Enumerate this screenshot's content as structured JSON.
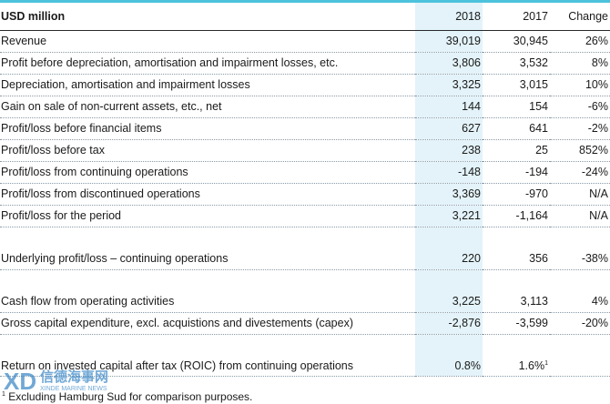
{
  "table": {
    "header": {
      "label": "USD million",
      "col_2018": "2018",
      "col_2017": "2017",
      "col_change": "Change"
    },
    "rows": [
      {
        "label": "Revenue",
        "v2018": "39,019",
        "v2017": "30,945",
        "change": "26%"
      },
      {
        "label": "Profit before depreciation, amortisation and impairment losses, etc.",
        "v2018": "3,806",
        "v2017": "3,532",
        "change": "8%"
      },
      {
        "label": "Depreciation, amortisation and impairment losses",
        "v2018": "3,325",
        "v2017": "3,015",
        "change": "10%"
      },
      {
        "label": "Gain on sale of non-current assets, etc., net",
        "v2018": "144",
        "v2017": "154",
        "change": "-6%"
      },
      {
        "label": "Profit/loss before financial items",
        "v2018": "627",
        "v2017": "641",
        "change": "-2%"
      },
      {
        "label": "Profit/loss before tax",
        "v2018": "238",
        "v2017": "25",
        "change": "852%"
      },
      {
        "label": "Profit/loss from continuing operations",
        "v2018": "-148",
        "v2017": "-194",
        "change": "-24%"
      },
      {
        "label": "Profit/loss from discontinued operations",
        "v2018": "3,369",
        "v2017": "-970",
        "change": "N/A"
      },
      {
        "label": "Profit/loss for the period",
        "v2018": "3,221",
        "v2017": "-1,164",
        "change": "N/A"
      },
      {
        "label": "Underlying profit/loss – continuing operations",
        "v2018": "220",
        "v2017": "356",
        "change": "-38%"
      },
      {
        "label": "Cash flow from operating activities",
        "v2018": "3,225",
        "v2017": "3,113",
        "change": "4%"
      },
      {
        "label": "Gross capital expenditure, excl. acquistions and divestements (capex)",
        "v2018": "-2,876",
        "v2017": "-3,599",
        "change": "-20%"
      },
      {
        "label": "Return on invested capital after tax (ROIC) from continuing operations",
        "v2018": "0.8%",
        "v2017": "1.6%",
        "v2017_sup": "1",
        "change": ""
      }
    ]
  },
  "footnote": {
    "marker": "1",
    "text": " Excluding Hamburg Sud for comparison purposes."
  },
  "watermark": {
    "mark": "XD",
    "title": "信德海事网",
    "subtitle": "XINDE MARINE NEWS"
  },
  "colors": {
    "accent": "#4cc2dc",
    "highlight_column": "#e3f3f9",
    "text": "#1a1a1a"
  }
}
